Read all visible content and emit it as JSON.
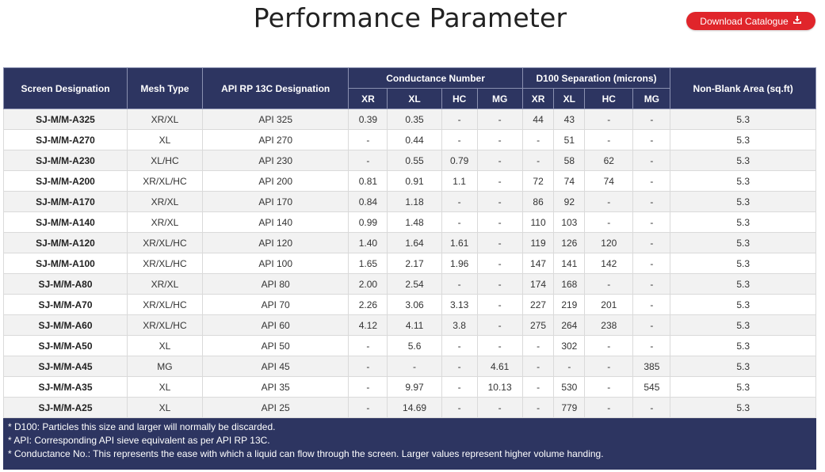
{
  "page": {
    "title": "Performance Parameter",
    "download_button": {
      "label": "Download Catalogue",
      "icon": "download-icon",
      "color": "#e0252b"
    }
  },
  "table": {
    "header_color": "#2d3561",
    "headers": {
      "screen_designation": "Screen Designation",
      "mesh_type": "Mesh Type",
      "api_designation": "API RP 13C Designation",
      "conductance_group": "Conductance Number",
      "d100_group": "D100 Separation (microns)",
      "non_blank_area": "Non-Blank Area (sq.ft)",
      "conductance_sub": [
        "XR",
        "XL",
        "HC",
        "MG"
      ],
      "d100_sub": [
        "XR",
        "XL",
        "HC",
        "MG"
      ]
    },
    "rows": [
      {
        "designation": "SJ-M/M-A325",
        "mesh": "XR/XL",
        "api": "API 325",
        "cond": [
          "0.39",
          "0.35",
          "-",
          "-"
        ],
        "d100": [
          "44",
          "43",
          "-",
          "-"
        ],
        "area": "5.3"
      },
      {
        "designation": "SJ-M/M-A270",
        "mesh": "XL",
        "api": "API 270",
        "cond": [
          "-",
          "0.44",
          "-",
          "-"
        ],
        "d100": [
          "-",
          "51",
          "-",
          "-"
        ],
        "area": "5.3"
      },
      {
        "designation": "SJ-M/M-A230",
        "mesh": "XL/HC",
        "api": "API 230",
        "cond": [
          "-",
          "0.55",
          "0.79",
          "-"
        ],
        "d100": [
          "-",
          "58",
          "62",
          "-"
        ],
        "area": "5.3"
      },
      {
        "designation": "SJ-M/M-A200",
        "mesh": "XR/XL/HC",
        "api": "API 200",
        "cond": [
          "0.81",
          "0.91",
          "1.1",
          "-"
        ],
        "d100": [
          "72",
          "74",
          "74",
          "-"
        ],
        "area": "5.3"
      },
      {
        "designation": "SJ-M/M-A170",
        "mesh": "XR/XL",
        "api": "API 170",
        "cond": [
          "0.84",
          "1.18",
          "-",
          "-"
        ],
        "d100": [
          "86",
          "92",
          "-",
          "-"
        ],
        "area": "5.3"
      },
      {
        "designation": "SJ-M/M-A140",
        "mesh": "XR/XL",
        "api": "API 140",
        "cond": [
          "0.99",
          "1.48",
          "-",
          "-"
        ],
        "d100": [
          "110",
          "103",
          "-",
          "-"
        ],
        "area": "5.3"
      },
      {
        "designation": "SJ-M/M-A120",
        "mesh": "XR/XL/HC",
        "api": "API 120",
        "cond": [
          "1.40",
          "1.64",
          "1.61",
          "-"
        ],
        "d100": [
          "119",
          "126",
          "120",
          "-"
        ],
        "area": "5.3"
      },
      {
        "designation": "SJ-M/M-A100",
        "mesh": "XR/XL/HC",
        "api": "API 100",
        "cond": [
          "1.65",
          "2.17",
          "1.96",
          "-"
        ],
        "d100": [
          "147",
          "141",
          "142",
          "-"
        ],
        "area": "5.3"
      },
      {
        "designation": "SJ-M/M-A80",
        "mesh": "XR/XL",
        "api": "API 80",
        "cond": [
          "2.00",
          "2.54",
          "-",
          "-"
        ],
        "d100": [
          "174",
          "168",
          "-",
          "-"
        ],
        "area": "5.3"
      },
      {
        "designation": "SJ-M/M-A70",
        "mesh": "XR/XL/HC",
        "api": "API 70",
        "cond": [
          "2.26",
          "3.06",
          "3.13",
          "-"
        ],
        "d100": [
          "227",
          "219",
          "201",
          "-"
        ],
        "area": "5.3"
      },
      {
        "designation": "SJ-M/M-A60",
        "mesh": "XR/XL/HC",
        "api": "API 60",
        "cond": [
          "4.12",
          "4.11",
          "3.8",
          "-"
        ],
        "d100": [
          "275",
          "264",
          "238",
          "-"
        ],
        "area": "5.3"
      },
      {
        "designation": "SJ-M/M-A50",
        "mesh": "XL",
        "api": "API 50",
        "cond": [
          "-",
          "5.6",
          "-",
          "-"
        ],
        "d100": [
          "-",
          "302",
          "-",
          "-"
        ],
        "area": "5.3"
      },
      {
        "designation": "SJ-M/M-A45",
        "mesh": "MG",
        "api": "API 45",
        "cond": [
          "-",
          "-",
          "-",
          "4.61"
        ],
        "d100": [
          "-",
          "-",
          "-",
          "385"
        ],
        "area": "5.3"
      },
      {
        "designation": "SJ-M/M-A35",
        "mesh": "XL",
        "api": "API 35",
        "cond": [
          "-",
          "9.97",
          "-",
          "10.13"
        ],
        "d100": [
          "-",
          "530",
          "-",
          "545"
        ],
        "area": "5.3"
      },
      {
        "designation": "SJ-M/M-A25",
        "mesh": "XL",
        "api": "API 25",
        "cond": [
          "-",
          "14.69",
          "-",
          "-"
        ],
        "d100": [
          "-",
          "779",
          "-",
          "-"
        ],
        "area": "5.3"
      }
    ],
    "notes": [
      "* D100: Particles this size and larger will normally be discarded.",
      "* API: Corresponding API sieve equivalent as per API RP 13C.",
      "* Conductance No.: This represents the ease with which a liquid can flow through the screen. Larger values represent higher volume handing."
    ]
  }
}
